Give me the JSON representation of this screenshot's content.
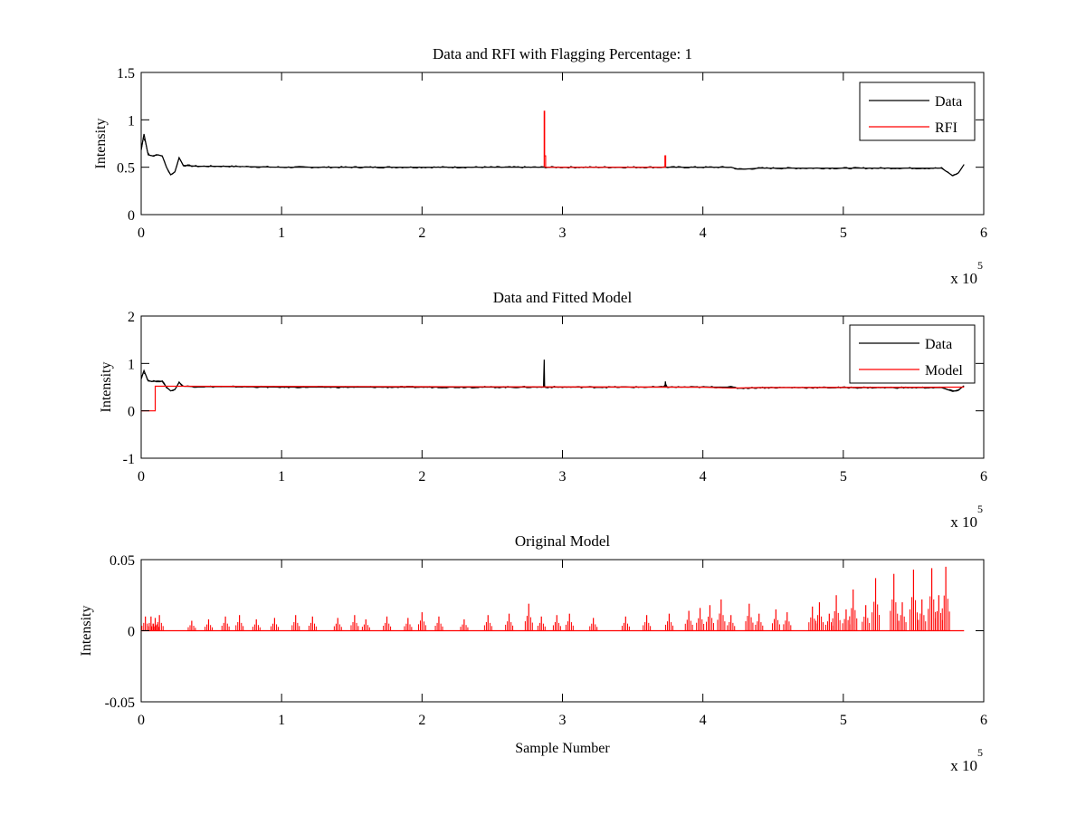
{
  "chart_data": [
    {
      "type": "line",
      "title": "Data and RFI with Flagging Percentage: 1",
      "xlabel": "",
      "ylabel": "Intensity",
      "xlim": [
        0,
        600000
      ],
      "ylim": [
        0,
        1.5
      ],
      "x_ticks": [
        0,
        1,
        2,
        3,
        4,
        5,
        6
      ],
      "x_tick_labels": [
        "0",
        "1",
        "2",
        "3",
        "4",
        "5",
        "6"
      ],
      "y_ticks": [
        0,
        0.5,
        1,
        1.5
      ],
      "y_tick_labels": [
        "0",
        "0.5",
        "1",
        "1.5"
      ],
      "x_multiplier": {
        "base": "x 10",
        "exponent": "5"
      },
      "legend": {
        "placement": "top-right",
        "entries": [
          "Data",
          "RFI"
        ]
      },
      "grid": false,
      "series": [
        {
          "name": "Data",
          "color": "#000000",
          "x": [
            0,
            2000,
            5000,
            8000,
            12000,
            15000,
            18000,
            21000,
            24000,
            27000,
            30000,
            40000,
            60000,
            100000,
            150000,
            200000,
            250000,
            280000,
            300000,
            350000,
            400000,
            420000,
            425000,
            430000,
            440000,
            500000,
            550000,
            570000,
            578000,
            582000,
            586000
          ],
          "y": [
            0.68,
            0.85,
            0.63,
            0.62,
            0.63,
            0.62,
            0.5,
            0.42,
            0.45,
            0.6,
            0.52,
            0.51,
            0.51,
            0.5,
            0.5,
            0.5,
            0.5,
            0.5,
            0.5,
            0.5,
            0.5,
            0.5,
            0.48,
            0.48,
            0.49,
            0.49,
            0.49,
            0.49,
            0.41,
            0.44,
            0.53
          ]
        },
        {
          "name": "RFI",
          "color": "#ff0000",
          "x": [
            287000,
            287000,
            287300,
            287300,
            288000,
            288000,
            373000,
            373000,
            373500,
            373500
          ],
          "y": [
            0.5,
            1.09,
            1.09,
            0.62,
            0.62,
            0.5,
            0.5,
            0.62,
            0.62,
            0.5
          ]
        }
      ]
    },
    {
      "type": "line",
      "title": "Data and Fitted Model",
      "xlabel": "",
      "ylabel": "Intensity",
      "xlim": [
        0,
        600000
      ],
      "ylim": [
        -1,
        2
      ],
      "x_ticks": [
        0,
        1,
        2,
        3,
        4,
        5,
        6
      ],
      "x_tick_labels": [
        "0",
        "1",
        "2",
        "3",
        "4",
        "5",
        "6"
      ],
      "y_ticks": [
        -1,
        0,
        1,
        2
      ],
      "y_tick_labels": [
        "-1",
        "0",
        "1",
        "2"
      ],
      "x_multiplier": {
        "base": "x 10",
        "exponent": "5"
      },
      "legend": {
        "placement": "top-right",
        "entries": [
          "Data",
          "Model"
        ]
      },
      "grid": false,
      "series": [
        {
          "name": "Data",
          "color": "#000000",
          "x": [
            0,
            2000,
            5000,
            8000,
            12000,
            15000,
            18000,
            21000,
            24000,
            27000,
            30000,
            40000,
            60000,
            100000,
            150000,
            200000,
            250000,
            286500,
            287000,
            287300,
            288000,
            300000,
            373000,
            373300,
            373800,
            400000,
            420000,
            425000,
            430000,
            440000,
            500000,
            550000,
            570000,
            578000,
            582000,
            586000
          ],
          "y": [
            0.68,
            0.85,
            0.63,
            0.62,
            0.63,
            0.62,
            0.5,
            0.42,
            0.45,
            0.6,
            0.52,
            0.51,
            0.51,
            0.5,
            0.5,
            0.5,
            0.5,
            0.5,
            1.08,
            0.52,
            0.5,
            0.5,
            0.5,
            0.62,
            0.5,
            0.5,
            0.5,
            0.48,
            0.48,
            0.49,
            0.49,
            0.49,
            0.49,
            0.41,
            0.44,
            0.53
          ]
        },
        {
          "name": "Model",
          "color": "#ff0000",
          "x": [
            0,
            10000,
            10000,
            200000,
            400000,
            420000,
            440000,
            586000
          ],
          "y": [
            0,
            0,
            0.52,
            0.51,
            0.5,
            0.48,
            0.49,
            0.5
          ]
        }
      ]
    },
    {
      "type": "line",
      "title": "Original Model",
      "xlabel": "Sample Number",
      "ylabel": "Intensity",
      "xlim": [
        0,
        600000
      ],
      "ylim": [
        -0.05,
        0.05
      ],
      "x_ticks": [
        0,
        1,
        2,
        3,
        4,
        5,
        6
      ],
      "x_tick_labels": [
        "0",
        "1",
        "2",
        "3",
        "4",
        "5",
        "6"
      ],
      "y_ticks": [
        -0.05,
        0,
        0.05
      ],
      "y_tick_labels": [
        "-0.05",
        "0",
        "0.05"
      ],
      "x_multiplier": {
        "base": "x 10",
        "exponent": "5"
      },
      "legend": null,
      "grid": false,
      "series": [
        {
          "color": "#ff0000",
          "baseline": 0,
          "x_end": 586000,
          "spikes_x": [
            3000,
            7000,
            10000,
            13000,
            36000,
            48000,
            60000,
            70000,
            82000,
            95000,
            110000,
            122000,
            140000,
            152000,
            160000,
            175000,
            190000,
            200000,
            212000,
            230000,
            247000,
            262000,
            276000,
            285000,
            296000,
            305000,
            322000,
            345000,
            360000,
            376000,
            390000,
            398000,
            405000,
            413000,
            420000,
            433000,
            440000,
            452000,
            460000,
            478000,
            483000,
            490000,
            495000,
            502000,
            507000,
            516000,
            523000,
            536000,
            542000,
            550000,
            556000,
            563000,
            568000,
            573000
          ],
          "spikes_y": [
            0.01,
            0.01,
            0.009,
            0.011,
            0.007,
            0.008,
            0.01,
            0.011,
            0.008,
            0.009,
            0.011,
            0.01,
            0.009,
            0.011,
            0.008,
            0.01,
            0.009,
            0.013,
            0.01,
            0.008,
            0.011,
            0.012,
            0.019,
            0.01,
            0.011,
            0.012,
            0.009,
            0.01,
            0.011,
            0.012,
            0.014,
            0.016,
            0.018,
            0.022,
            0.011,
            0.019,
            0.012,
            0.015,
            0.013,
            0.017,
            0.02,
            0.012,
            0.025,
            0.015,
            0.029,
            0.018,
            0.037,
            0.04,
            0.02,
            0.043,
            0.022,
            0.044,
            0.025,
            0.045
          ]
        }
      ]
    }
  ]
}
